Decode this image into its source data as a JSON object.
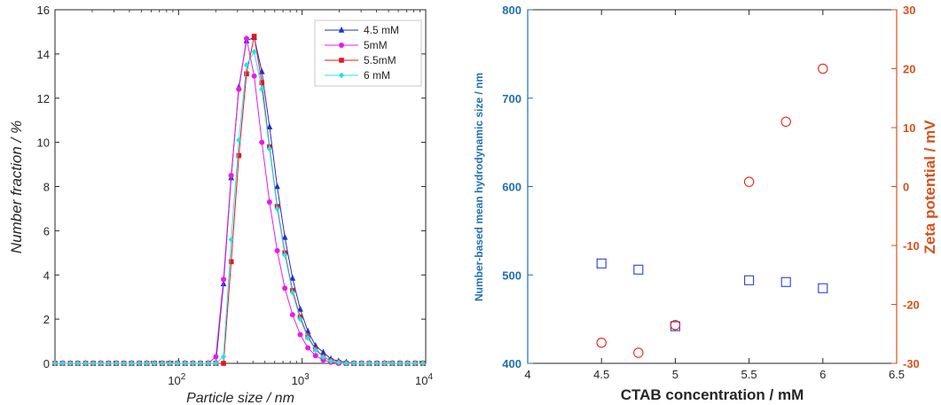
{
  "chart_data": [
    {
      "type": "line",
      "xlabel": "Particle size / nm",
      "ylabel": "Number fraction / %",
      "xscale": "log",
      "xlim": [
        10,
        10000
      ],
      "ylim": [
        0,
        16
      ],
      "xticks": [
        {
          "base": "10",
          "exp": "2"
        },
        {
          "base": "10",
          "exp": "3"
        },
        {
          "base": "10",
          "exp": "4"
        }
      ],
      "yticks": [
        "0",
        "2",
        "4",
        "6",
        "8",
        "10",
        "12",
        "14",
        "16"
      ],
      "legend_position": "top-right",
      "series": [
        {
          "name": "4.5 mM",
          "color": "#1f2fd1",
          "marker": "triangle",
          "x": [
            10,
            11.5,
            13.3,
            15.3,
            17.7,
            20.4,
            23.5,
            27.1,
            31.3,
            36.1,
            41.7,
            48.1,
            55.4,
            63.9,
            73.7,
            85.1,
            98.1,
            113,
            130.5,
            150.5,
            173.7,
            200.3,
            231.1,
            266.6,
            307.5,
            354.8,
            409.3,
            472.2,
            544.8,
            628.5,
            725.1,
            836.5,
            965.1,
            1113,
            1284,
            1482,
            1709,
            1972,
            2275,
            2625,
            3028,
            3493,
            4030,
            4649,
            5364,
            6188,
            7139,
            8236,
            9502
          ],
          "y": [
            0,
            0,
            0,
            0,
            0,
            0,
            0,
            0,
            0,
            0,
            0,
            0,
            0,
            0,
            0,
            0,
            0,
            0,
            0,
            0,
            0,
            0,
            3.6,
            8.4,
            12.5,
            14.6,
            14.75,
            13.2,
            10.7,
            8.0,
            5.7,
            3.85,
            2.45,
            1.45,
            0.8,
            0.5,
            0.2,
            0.1,
            0.05,
            0,
            0,
            0,
            0,
            0,
            0,
            0,
            0,
            0,
            0
          ]
        },
        {
          "name": "5mM",
          "color": "#e81ce8",
          "marker": "circle",
          "x": [
            10,
            11.5,
            13.3,
            15.3,
            17.7,
            20.4,
            23.5,
            27.1,
            31.3,
            36.1,
            41.7,
            48.1,
            55.4,
            63.9,
            73.7,
            85.1,
            98.1,
            113,
            130.5,
            150.5,
            173.7,
            200.3,
            231.1,
            266.6,
            307.5,
            354.8,
            409.3,
            472.2,
            544.8,
            628.5,
            725.1,
            836.5,
            965.1,
            1113,
            1284,
            1482,
            1709,
            1972,
            2275,
            2625,
            3028,
            3493,
            4030,
            4649,
            5364,
            6188,
            7139,
            8236,
            9502
          ],
          "y": [
            0,
            0,
            0,
            0,
            0,
            0,
            0,
            0,
            0,
            0,
            0,
            0,
            0,
            0,
            0,
            0,
            0,
            0,
            0,
            0,
            0,
            0.3,
            3.8,
            8.5,
            12.4,
            14.7,
            13.0,
            10.0,
            7.3,
            5.1,
            3.4,
            2.2,
            1.3,
            0.7,
            0.35,
            0.15,
            0.05,
            0,
            0,
            0,
            0,
            0,
            0,
            0,
            0,
            0,
            0,
            0,
            0
          ]
        },
        {
          "name": "5.5mM",
          "color": "#e8141c",
          "marker": "square",
          "x": [
            10,
            11.5,
            13.3,
            15.3,
            17.7,
            20.4,
            23.5,
            27.1,
            31.3,
            36.1,
            41.7,
            48.1,
            55.4,
            63.9,
            73.7,
            85.1,
            98.1,
            113,
            130.5,
            150.5,
            173.7,
            200.3,
            231.1,
            266.6,
            307.5,
            354.8,
            409.3,
            472.2,
            544.8,
            628.5,
            725.1,
            836.5,
            965.1,
            1113,
            1284,
            1482,
            1709,
            1972,
            2275,
            2625,
            3028,
            3493,
            4030,
            4649,
            5364,
            6188,
            7139,
            8236,
            9502
          ],
          "y": [
            0,
            0,
            0,
            0,
            0,
            0,
            0,
            0,
            0,
            0,
            0,
            0,
            0,
            0,
            0,
            0,
            0,
            0,
            0,
            0,
            0,
            0,
            0,
            4.6,
            9.4,
            13.1,
            14.8,
            12.7,
            9.8,
            7.1,
            5.0,
            3.3,
            2.1,
            1.2,
            0.65,
            0.3,
            0.12,
            0.05,
            0,
            0,
            0,
            0,
            0,
            0,
            0,
            0,
            0,
            0,
            0
          ]
        },
        {
          "name": "6 mM",
          "color": "#22e3e8",
          "marker": "diamond",
          "x": [
            10,
            11.5,
            13.3,
            15.3,
            17.7,
            20.4,
            23.5,
            27.1,
            31.3,
            36.1,
            41.7,
            48.1,
            55.4,
            63.9,
            73.7,
            85.1,
            98.1,
            113,
            130.5,
            150.5,
            173.7,
            200.3,
            231.1,
            266.6,
            307.5,
            354.8,
            409.3,
            472.2,
            544.8,
            628.5,
            725.1,
            836.5,
            965.1,
            1113,
            1284,
            1482,
            1709,
            1972,
            2275,
            2625,
            3028,
            3493,
            4030,
            4649,
            5364,
            6188,
            7139,
            8236,
            9502
          ],
          "y": [
            0,
            0,
            0,
            0,
            0,
            0,
            0,
            0,
            0,
            0,
            0,
            0,
            0,
            0,
            0,
            0,
            0,
            0,
            0,
            0,
            0,
            0,
            0.3,
            5.6,
            10.1,
            13.5,
            14.1,
            12.4,
            9.7,
            7.0,
            4.9,
            3.2,
            2.0,
            1.15,
            0.6,
            0.28,
            0.1,
            0.04,
            0,
            0,
            0,
            0,
            0,
            0,
            0,
            0,
            0,
            0,
            0
          ]
        }
      ]
    },
    {
      "type": "scatter",
      "xlabel": "CTAB concentration / mM",
      "ylabel_left": "Number-based mean hydrodynamic size / nm",
      "ylabel_right": "Zeta potential / mV",
      "xlim": [
        4,
        6.5
      ],
      "ylim_left": [
        400,
        800
      ],
      "ylim_right": [
        -30,
        30
      ],
      "xticks": [
        "4",
        "4.5",
        "5",
        "5.5",
        "6",
        "6.5"
      ],
      "yticks_left": [
        "400",
        "500",
        "600",
        "700",
        "800"
      ],
      "yticks_right": [
        "-30",
        "-20",
        "-10",
        "0",
        "10",
        "20",
        "30"
      ],
      "series": [
        {
          "axis": "left",
          "color": "#2b3fd0",
          "marker": "square",
          "x": [
            4.5,
            4.75,
            5.0,
            5.5,
            5.75,
            6.0
          ],
          "y": [
            513,
            506,
            442,
            494,
            492,
            485
          ]
        },
        {
          "axis": "right",
          "color": "#e8261f",
          "marker": "circle",
          "x": [
            4.5,
            4.75,
            5.0,
            5.5,
            5.75,
            6.0
          ],
          "y": [
            -26.5,
            -28.2,
            -23.5,
            0.8,
            11.0,
            20.0
          ]
        }
      ]
    }
  ]
}
